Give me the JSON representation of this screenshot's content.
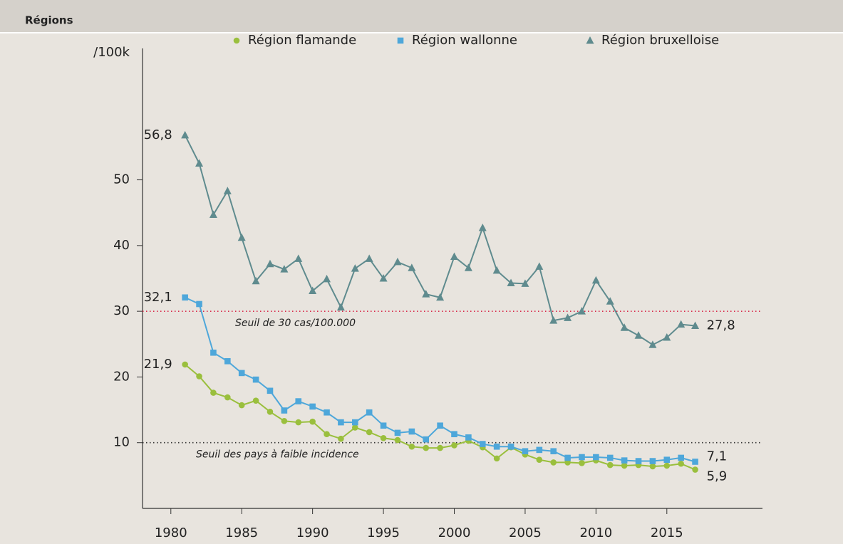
{
  "header": {
    "title": "Régions"
  },
  "chart_data": {
    "type": "line",
    "y_label": "/100k",
    "x": [
      1981,
      1982,
      1983,
      1984,
      1985,
      1986,
      1987,
      1988,
      1989,
      1990,
      1991,
      1992,
      1993,
      1994,
      1995,
      1996,
      1997,
      1998,
      1999,
      2000,
      2001,
      2002,
      2003,
      2004,
      2005,
      2006,
      2007,
      2008,
      2009,
      2010,
      2011,
      2012,
      2013,
      2014,
      2015,
      2016,
      2017
    ],
    "xlim": [
      1978,
      2022
    ],
    "xticks": [
      1980,
      1985,
      1990,
      1995,
      2000,
      2005,
      2010,
      2015
    ],
    "ylim": [
      0,
      70
    ],
    "yticks": [
      10,
      20,
      30,
      40,
      50
    ],
    "legend": "top",
    "series": [
      {
        "name": "Région flamande",
        "color": "#9abf3d",
        "marker": "circle",
        "values": [
          21.9,
          20.1,
          17.6,
          16.9,
          15.7,
          16.4,
          14.7,
          13.3,
          13.1,
          13.2,
          11.3,
          10.6,
          12.3,
          11.6,
          10.7,
          10.4,
          9.4,
          9.2,
          9.2,
          9.6,
          10.3,
          9.3,
          7.6,
          9.3,
          8.2,
          7.4,
          7.0,
          7.0,
          6.9,
          7.3,
          6.6,
          6.5,
          6.6,
          6.4,
          6.5,
          6.8,
          5.9
        ],
        "value_labels": [
          "21,9",
          null,
          null,
          null,
          null,
          null,
          null,
          null,
          null,
          null,
          null,
          null,
          null,
          null,
          null,
          null,
          null,
          null,
          null,
          null,
          null,
          null,
          null,
          null,
          null,
          null,
          null,
          null,
          null,
          null,
          null,
          null,
          null,
          null,
          null,
          null,
          "5,9"
        ]
      },
      {
        "name": "Région wallonne",
        "color": "#4ea7da",
        "marker": "square",
        "values": [
          32.1,
          31.1,
          23.7,
          22.4,
          20.6,
          19.6,
          17.9,
          14.9,
          16.3,
          15.5,
          14.6,
          13.1,
          13.1,
          14.6,
          12.6,
          11.5,
          11.7,
          10.5,
          12.6,
          11.3,
          10.8,
          9.8,
          9.4,
          9.4,
          8.7,
          8.9,
          8.7,
          7.7,
          7.8,
          7.8,
          7.7,
          7.3,
          7.2,
          7.2,
          7.4,
          7.7,
          7.1
        ],
        "value_labels": [
          "32,1",
          null,
          null,
          null,
          null,
          null,
          null,
          null,
          null,
          null,
          null,
          null,
          null,
          null,
          null,
          null,
          null,
          null,
          null,
          null,
          null,
          null,
          null,
          null,
          null,
          null,
          null,
          null,
          null,
          null,
          null,
          null,
          null,
          null,
          null,
          null,
          "7,1"
        ]
      },
      {
        "name": "Région bruxelloise",
        "color": "#5f8b8e",
        "marker": "triangle",
        "values": [
          56.8,
          52.5,
          44.7,
          48.3,
          41.2,
          34.6,
          37.2,
          36.4,
          38.0,
          33.1,
          34.9,
          30.6,
          36.5,
          38.0,
          35.0,
          37.5,
          36.6,
          32.6,
          32.1,
          38.3,
          36.6,
          42.7,
          36.2,
          34.3,
          34.2,
          36.8,
          28.6,
          29.0,
          30.0,
          34.7,
          31.5,
          27.5,
          26.3,
          24.9,
          26.0,
          28.0,
          27.8
        ],
        "value_labels": [
          "56,8",
          null,
          null,
          null,
          null,
          null,
          null,
          null,
          null,
          null,
          null,
          null,
          null,
          null,
          null,
          null,
          null,
          null,
          null,
          null,
          null,
          null,
          null,
          null,
          null,
          null,
          null,
          null,
          null,
          null,
          null,
          null,
          null,
          null,
          null,
          null,
          "27,8"
        ]
      }
    ],
    "reference_lines": [
      {
        "value": 30,
        "label": "Seuil de 30 cas/100.000",
        "color": "#d9284a"
      },
      {
        "value": 10,
        "label": "Seuil des pays à faible incidence",
        "color": "#333333"
      }
    ]
  }
}
